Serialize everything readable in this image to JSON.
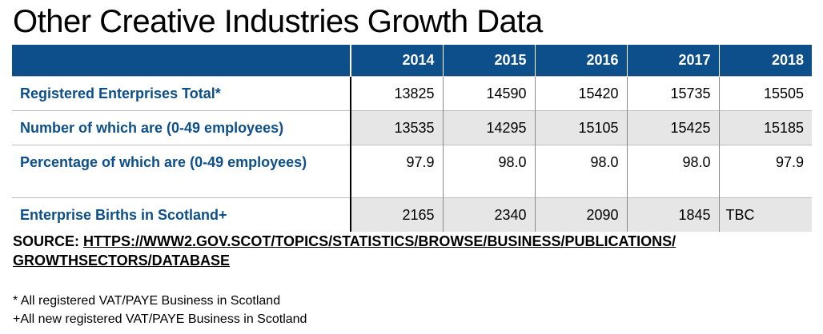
{
  "title": "Other Creative Industries Growth Data",
  "table": {
    "corner": "",
    "years": [
      "2014",
      "2015",
      "2016",
      "2017",
      "2018"
    ],
    "rows": [
      {
        "label": "Registered Enterprises Total*",
        "values": [
          "13825",
          "14590",
          "15420",
          "15735",
          "15505"
        ]
      },
      {
        "label": "Number of which are (0-49 employees)",
        "values": [
          "13535",
          "14295",
          "15105",
          "15425",
          "15185"
        ]
      },
      {
        "label": "Percentage of which are (0-49 employees)",
        "values": [
          "97.9",
          "98.0",
          "98.0",
          "98.0",
          "97.9"
        ]
      },
      {
        "label": "Enterprise Births in Scotland+",
        "values": [
          "2165",
          "2340",
          "2090",
          "1845",
          "TBC"
        ]
      }
    ]
  },
  "source": {
    "prefix": "SOURCE:",
    "url": "HTTPS://WWW2.GOV.SCOT/TOPICS/STATISTICS/BROWSE/BUSINESS/PUBLICATIONS/GROWTHSECTORS/DATABASE"
  },
  "footnotes": [
    "* All registered VAT/PAYE Business in Scotland",
    "+All new registered VAT/PAYE Business in Scotland"
  ],
  "colors": {
    "header_background": "#0d4f8b",
    "label_text": "#0d4f8b",
    "shaded_row": "#e6e6e6"
  }
}
